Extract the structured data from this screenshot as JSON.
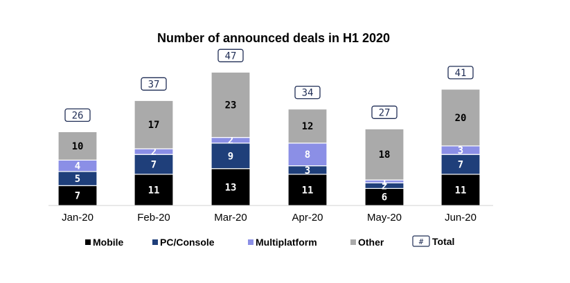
{
  "chart_data": {
    "type": "bar",
    "stacked": true,
    "title": "Number of announced deals in H1 2020",
    "categories": [
      "Jan-20",
      "Feb-20",
      "Mar-20",
      "Apr-20",
      "May-20",
      "Jun-20"
    ],
    "series": [
      {
        "name": "Mobile",
        "values": [
          7,
          11,
          13,
          11,
          6,
          11
        ]
      },
      {
        "name": "PC/Console",
        "values": [
          5,
          7,
          9,
          3,
          2,
          7
        ]
      },
      {
        "name": "Multiplatform",
        "values": [
          4,
          2,
          2,
          8,
          1,
          3
        ]
      },
      {
        "name": "Other",
        "values": [
          10,
          17,
          23,
          12,
          18,
          20
        ]
      }
    ],
    "totals": [
      26,
      37,
      47,
      34,
      27,
      41
    ],
    "totals_label": "Total",
    "totals_symbol": "#",
    "legend_position": "bottom",
    "grid": false,
    "colors": {
      "Mobile": "#000000",
      "PC/Console": "#1f3f7a",
      "Multiplatform": "#8b8fe6",
      "Other": "#aaaaaa",
      "total_box_border": "#1f2d55"
    }
  }
}
